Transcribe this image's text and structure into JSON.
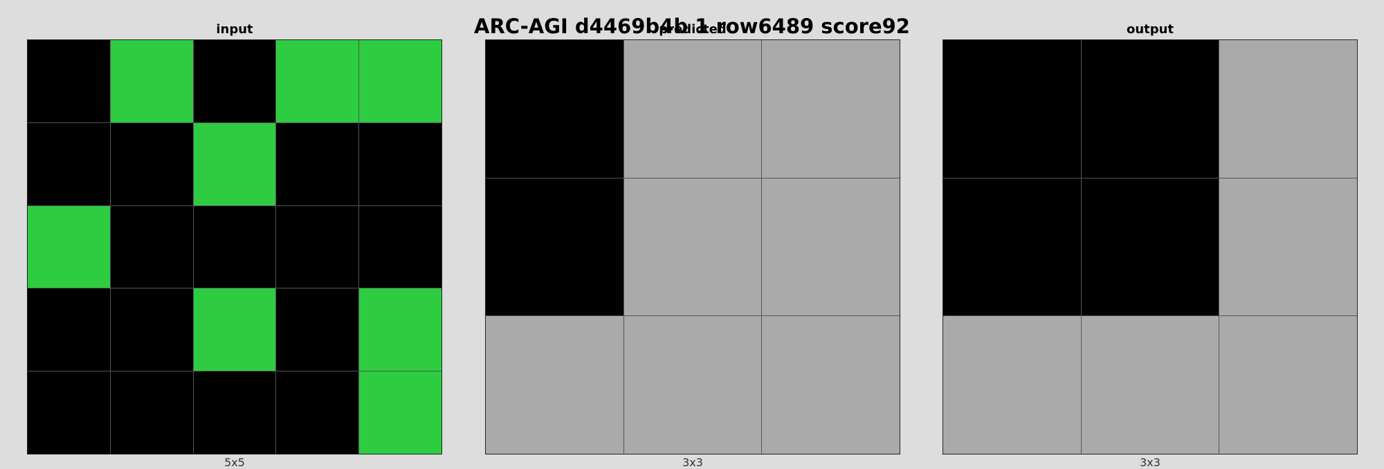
{
  "title": "ARC-AGI d4469b4b 1 row6489 score92",
  "palette": {
    "0": "#000000",
    "3": "#2ecc40",
    "5": "#aaaaaa"
  },
  "panels": {
    "input": {
      "label": "input",
      "dims": "5x5",
      "grid": [
        [
          0,
          3,
          0,
          3,
          3
        ],
        [
          0,
          0,
          3,
          0,
          0
        ],
        [
          3,
          0,
          0,
          0,
          0
        ],
        [
          0,
          0,
          3,
          0,
          3
        ],
        [
          0,
          0,
          0,
          0,
          3
        ]
      ]
    },
    "predicted": {
      "label": "predicted",
      "dims": "3x3",
      "grid": [
        [
          0,
          5,
          5
        ],
        [
          0,
          5,
          5
        ],
        [
          5,
          5,
          5
        ]
      ]
    },
    "output": {
      "label": "output",
      "dims": "3x3",
      "grid": [
        [
          0,
          0,
          5
        ],
        [
          0,
          0,
          5
        ],
        [
          5,
          5,
          5
        ]
      ]
    }
  }
}
